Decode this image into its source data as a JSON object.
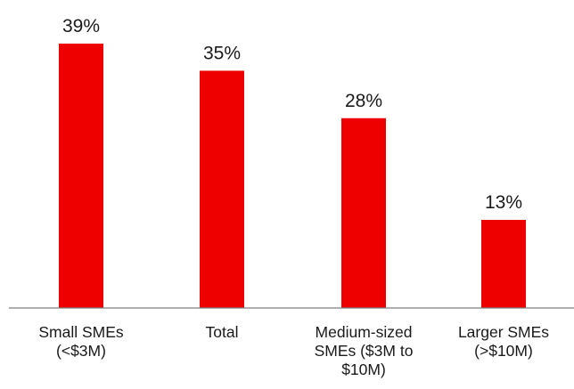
{
  "chart_data": {
    "type": "bar",
    "categories": [
      [
        "Small SMEs",
        "(<$3M)"
      ],
      [
        "Total"
      ],
      [
        "Medium-sized",
        "SMEs ($3M to",
        "$10M)"
      ],
      [
        "Larger SMEs",
        "(>$10M)"
      ]
    ],
    "values": [
      39,
      35,
      28,
      13
    ],
    "value_labels": [
      "39%",
      "35%",
      "28%",
      "13%"
    ],
    "title": "",
    "xlabel": "",
    "ylabel": "",
    "ylim": [
      0,
      39
    ],
    "grid": false,
    "legend": "none",
    "bar_color": "#ee0000",
    "axis_color": "#7f7f7f"
  }
}
